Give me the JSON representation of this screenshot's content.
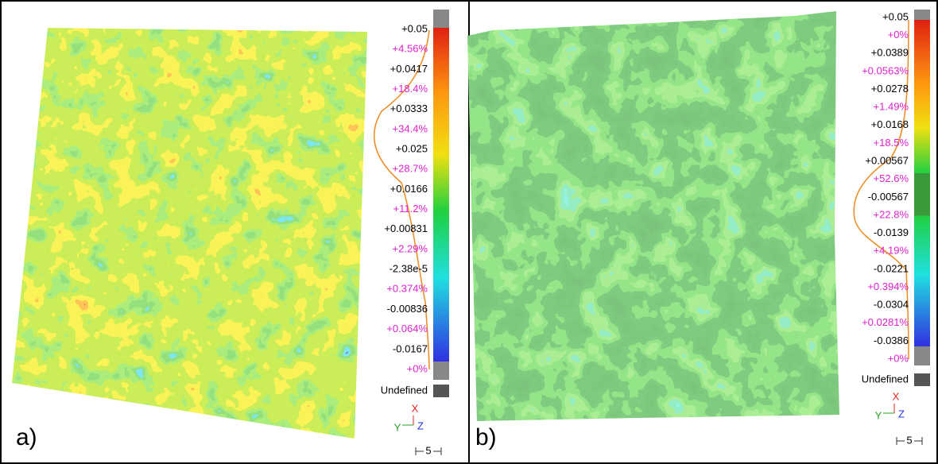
{
  "panels": [
    {
      "label": "a)",
      "scale_labels": [
        "+0.05",
        "+4.56%",
        "+0.0417",
        "+18.4%",
        "+0.0333",
        "+34.4%",
        "+0.025",
        "+28.7%",
        "+0.0166",
        "+11.2%",
        "+0.00831",
        "+2.29%",
        "-2.38e-5",
        "+0.374%",
        "-0.00836",
        "+0.064%",
        "-0.0167",
        "+0%"
      ],
      "undefined_label": "Undefined",
      "axes": {
        "x": "X",
        "y": "Y",
        "z": "Z"
      },
      "scale_bar": "5"
    },
    {
      "label": "b)",
      "scale_labels": [
        "+0.05",
        "+0%",
        "+0.0389",
        "+0.0563%",
        "+0.0278",
        "+1.49%",
        "+0.0168",
        "+18.5%",
        "+0.00567",
        "+52.6%",
        "-0.00567",
        "+22.8%",
        "-0.0139",
        "+4.19%",
        "-0.0221",
        "+0.394%",
        "-0.0304",
        "+0.0281%",
        "-0.0386",
        "+0%"
      ],
      "undefined_label": "Undefined",
      "axes": {
        "x": "X",
        "y": "Y",
        "z": "Z"
      },
      "scale_bar": "5"
    }
  ]
}
